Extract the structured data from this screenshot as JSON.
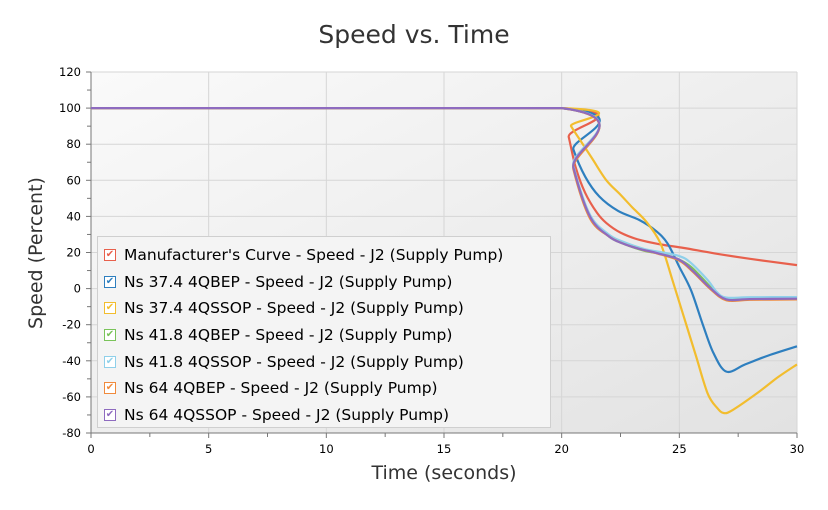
{
  "chart_data": {
    "type": "line",
    "title": "Speed vs. Time",
    "xlabel": "Time (seconds)",
    "ylabel": "Speed (Percent)",
    "xlim": [
      0,
      30
    ],
    "ylim": [
      -80,
      120
    ],
    "xticks": [
      0,
      5,
      10,
      15,
      20,
      25,
      30
    ],
    "yticks": [
      -80,
      -60,
      -40,
      -20,
      0,
      20,
      40,
      60,
      80,
      100,
      120
    ],
    "grid": true,
    "legend": "bottom-left",
    "series": [
      {
        "name": "Manufacturer's Curve - Speed - J2 (Supply Pump)",
        "color": "#e8604c",
        "x": [
          0,
          20,
          20.3,
          20.6,
          21,
          21.5,
          21.9,
          22.5,
          23.3,
          24.2,
          25.2,
          26.5,
          28,
          30
        ],
        "y": [
          100,
          100,
          84,
          67,
          53,
          42,
          36.3,
          31,
          27,
          24.5,
          22.5,
          19.5,
          16.5,
          13
        ]
      },
      {
        "name": "Ns 37.4 4QBEP - Speed - J2 (Supply Pump)",
        "color": "#2e7fbf",
        "x": [
          0,
          20,
          20.5,
          21,
          21.6,
          22.4,
          23.3,
          24,
          24.5,
          25,
          25.5,
          26,
          26.45,
          27,
          27.8,
          28.8,
          30
        ],
        "y": [
          100,
          100,
          77,
          62,
          51,
          43,
          38,
          32,
          25,
          12,
          -1,
          -20,
          -35.7,
          -46,
          -42,
          -37,
          -32
        ]
      },
      {
        "name": "Ns 37.4 4QSSOP - Speed - J2 (Supply Pump)",
        "color": "#f2bd2e",
        "x": [
          0,
          20,
          20.4,
          20.8,
          21.3,
          21.9,
          22.5,
          23,
          23.6,
          24.2,
          24.7,
          25.2,
          25.7,
          26.2,
          26.6,
          26.9,
          27.3,
          28.3,
          29.2,
          30
        ],
        "y": [
          100,
          100,
          90,
          82,
          72,
          60,
          52,
          45,
          37,
          25,
          5,
          -16,
          -37,
          -58,
          -66,
          -69,
          -67,
          -58,
          -49,
          -42
        ]
      },
      {
        "name": "Ns 41.8 4QBEP - Speed - J2 (Supply Pump)",
        "color": "#7ac35a",
        "x": [
          0,
          20,
          20.5,
          21.2,
          22,
          22.6,
          23.5,
          24.3,
          25,
          25.5,
          26.1,
          26.6,
          27,
          28,
          30
        ],
        "y": [
          100,
          100,
          67,
          40,
          29,
          25,
          21,
          19,
          16,
          12,
          4,
          -3,
          -6,
          -5.5,
          -5.3
        ]
      },
      {
        "name": "Ns 41.8 4QSSOP - Speed - J2 (Supply Pump)",
        "color": "#8fd0ea",
        "x": [
          0,
          20,
          20.5,
          21.2,
          22,
          22.6,
          23.5,
          24.3,
          25,
          25.45,
          26.2,
          26.6,
          27,
          28,
          30
        ],
        "y": [
          100,
          100,
          68,
          41,
          30,
          26,
          22,
          20,
          18,
          14.7,
          4.8,
          -2,
          -5,
          -4.8,
          -4.7
        ]
      },
      {
        "name": "Ns 64 4QBEP - Speed - J2 (Supply Pump)",
        "color": "#f08a3c",
        "x": [
          0,
          20,
          20.5,
          21.2,
          22,
          22.6,
          23.3,
          24.05,
          25,
          25.6,
          26.3,
          27,
          28,
          30
        ],
        "y": [
          100,
          100,
          66,
          39,
          29,
          25,
          22,
          19.5,
          15.5,
          9,
          0,
          -6.5,
          -6.2,
          -6
        ]
      },
      {
        "name": "Ns 64 4QSSOP - Speed - J2 (Supply Pump)",
        "color": "#8e6bbf",
        "x": [
          0,
          20,
          20.5,
          21.2,
          22,
          22.6,
          23.3,
          24.05,
          25,
          25.6,
          26.3,
          27,
          28,
          30
        ],
        "y": [
          100,
          100,
          67,
          40,
          29,
          25,
          22,
          19.7,
          16,
          9.5,
          0.5,
          -6,
          -5.8,
          -5.6
        ]
      }
    ]
  }
}
